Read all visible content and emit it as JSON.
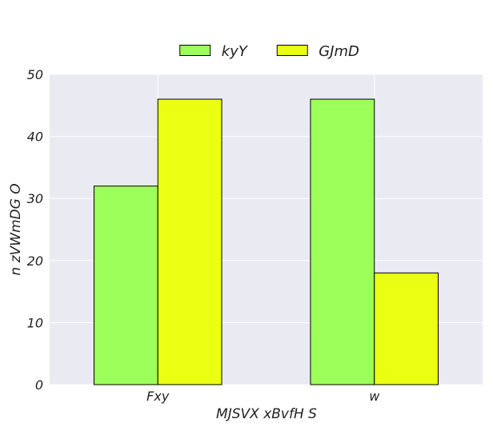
{
  "chart_data": {
    "type": "bar",
    "categories": [
      "Fxy",
      "w"
    ],
    "series": [
      {
        "name": "kyY",
        "values": [
          32,
          46
        ],
        "color": "#9cff5a"
      },
      {
        "name": "GJmD",
        "values": [
          46,
          18
        ],
        "color": "#eaff12"
      }
    ],
    "xlabel": "MJSVX xBvfH S",
    "ylabel": "n zVWmDG O",
    "ylim": [
      0,
      50
    ],
    "yticks": [
      0,
      10,
      20,
      30,
      40,
      50
    ],
    "grid": true,
    "legend_position": "top-center",
    "background_color": "#eaeaf2",
    "grid_color": "#ffffff"
  }
}
